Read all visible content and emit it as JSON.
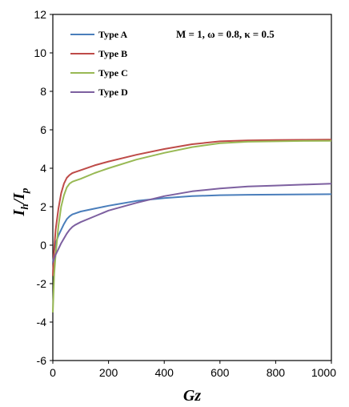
{
  "chart_data": {
    "type": "line",
    "xlabel": "Gz",
    "ylabel_main": "I",
    "ylabel_sub1": "h",
    "ylabel_slash": "/",
    "ylabel_main2": "I",
    "ylabel_sub2": "p",
    "xlim": [
      0,
      1000
    ],
    "ylim": [
      -6,
      12
    ],
    "xticks": [
      0,
      200,
      400,
      600,
      800,
      1000
    ],
    "yticks": [
      -6,
      -4,
      -2,
      0,
      2,
      4,
      6,
      8,
      10,
      12
    ],
    "grid": false,
    "legend_position": "top-left",
    "annotation": "M = 1, ω = 0.8, κ = 0.5",
    "series": [
      {
        "name": "Type A",
        "color": "#4a7ebb",
        "x": [
          0,
          5,
          10,
          20,
          30,
          40,
          50,
          60,
          70,
          80,
          100,
          150,
          200,
          300,
          400,
          500,
          600,
          700,
          800,
          900,
          1000
        ],
        "y": [
          -1.0,
          -0.3,
          0.1,
          0.5,
          0.8,
          1.1,
          1.35,
          1.5,
          1.6,
          1.65,
          1.75,
          1.9,
          2.05,
          2.3,
          2.45,
          2.55,
          2.6,
          2.62,
          2.63,
          2.64,
          2.65
        ]
      },
      {
        "name": "Type B",
        "color": "#be4b48",
        "x": [
          0,
          5,
          10,
          20,
          30,
          40,
          50,
          60,
          70,
          80,
          100,
          150,
          200,
          300,
          400,
          500,
          600,
          700,
          800,
          900,
          1000
        ],
        "y": [
          -1.6,
          -0.2,
          0.8,
          1.9,
          2.7,
          3.2,
          3.5,
          3.65,
          3.75,
          3.8,
          3.9,
          4.15,
          4.35,
          4.7,
          5.0,
          5.25,
          5.4,
          5.45,
          5.47,
          5.48,
          5.49
        ]
      },
      {
        "name": "Type C",
        "color": "#98b954",
        "x": [
          0,
          5,
          10,
          20,
          30,
          40,
          50,
          60,
          70,
          80,
          100,
          150,
          200,
          300,
          400,
          500,
          600,
          700,
          800,
          900,
          1000
        ],
        "y": [
          -3.5,
          -1.5,
          -0.5,
          1.0,
          2.0,
          2.6,
          3.0,
          3.2,
          3.3,
          3.35,
          3.45,
          3.75,
          4.0,
          4.45,
          4.8,
          5.1,
          5.3,
          5.38,
          5.4,
          5.42,
          5.43
        ]
      },
      {
        "name": "Type D",
        "color": "#7d60a0",
        "x": [
          0,
          5,
          10,
          20,
          30,
          40,
          50,
          60,
          70,
          80,
          100,
          150,
          200,
          300,
          400,
          500,
          600,
          700,
          800,
          900,
          1000
        ],
        "y": [
          -0.9,
          -0.7,
          -0.5,
          -0.2,
          0.1,
          0.35,
          0.6,
          0.8,
          0.95,
          1.05,
          1.2,
          1.5,
          1.8,
          2.2,
          2.55,
          2.8,
          2.95,
          3.05,
          3.1,
          3.15,
          3.2
        ]
      }
    ]
  }
}
